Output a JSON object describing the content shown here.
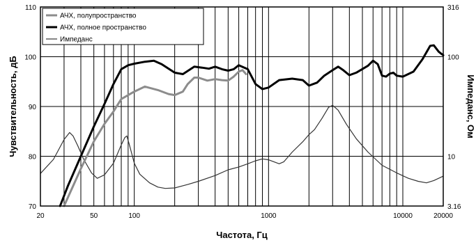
{
  "chart_data": {
    "type": "line",
    "xlabel": "Частота, Гц",
    "ylabel": "Чувствительность, дБ",
    "y2label": "Импеданс, Ом",
    "x_scale": "log",
    "xlim": [
      20,
      20000
    ],
    "ylim": [
      70,
      110
    ],
    "y2_scale": "log",
    "y2lim": [
      3.16,
      316
    ],
    "grid": true,
    "legend_position": "top-left",
    "x_ticks": [
      {
        "value": 20,
        "label": "20"
      },
      {
        "value": 50,
        "label": "50"
      },
      {
        "value": 100,
        "label": "100"
      },
      {
        "value": 1000,
        "label": "1000"
      },
      {
        "value": 10000,
        "label": "10000"
      },
      {
        "value": 20000,
        "label": "20000"
      }
    ],
    "y_ticks": [
      {
        "value": 70,
        "label": "70"
      },
      {
        "value": 80,
        "label": "80"
      },
      {
        "value": 90,
        "label": "90"
      },
      {
        "value": 100,
        "label": "100"
      },
      {
        "value": 110,
        "label": "110"
      }
    ],
    "y2_ticks": [
      {
        "value": 3.16,
        "label": "3.16"
      },
      {
        "value": 10,
        "label": "10"
      },
      {
        "value": 100,
        "label": "100"
      },
      {
        "value": 316,
        "label": "316"
      }
    ],
    "series": [
      {
        "name": "АЧХ, полупространство",
        "axis": "left",
        "color": "#8c8c8c",
        "stroke_width": 3,
        "points": [
          [
            30,
            70
          ],
          [
            35,
            74
          ],
          [
            40,
            77.5
          ],
          [
            50,
            83
          ],
          [
            60,
            86.5
          ],
          [
            70,
            89
          ],
          [
            80,
            91.5
          ],
          [
            100,
            93
          ],
          [
            120,
            94
          ],
          [
            150,
            93.3
          ],
          [
            180,
            92.5
          ],
          [
            200,
            92.3
          ],
          [
            230,
            93
          ],
          [
            250,
            94.5
          ],
          [
            280,
            95.8
          ],
          [
            300,
            95.8
          ],
          [
            350,
            95.2
          ],
          [
            400,
            95.5
          ],
          [
            450,
            95.3
          ],
          [
            500,
            95.2
          ],
          [
            550,
            96
          ],
          [
            600,
            97
          ],
          [
            640,
            97.3
          ],
          [
            680,
            96.5
          ]
        ]
      },
      {
        "name": "АЧХ, полное пространство",
        "axis": "left",
        "color": "#000000",
        "stroke_width": 3,
        "points": [
          [
            28,
            70
          ],
          [
            32,
            74
          ],
          [
            40,
            80
          ],
          [
            50,
            86
          ],
          [
            60,
            90.5
          ],
          [
            70,
            94.5
          ],
          [
            80,
            97.5
          ],
          [
            90,
            98.3
          ],
          [
            100,
            98.6
          ],
          [
            120,
            99
          ],
          [
            140,
            99.2
          ],
          [
            160,
            98.5
          ],
          [
            200,
            96.8
          ],
          [
            230,
            96.5
          ],
          [
            280,
            98
          ],
          [
            320,
            97.8
          ],
          [
            360,
            97.6
          ],
          [
            400,
            98
          ],
          [
            450,
            97.5
          ],
          [
            500,
            97.2
          ],
          [
            550,
            97.5
          ],
          [
            600,
            98.3
          ],
          [
            700,
            97.5
          ],
          [
            800,
            94.5
          ],
          [
            900,
            93.5
          ],
          [
            1000,
            93.8
          ],
          [
            1200,
            95.3
          ],
          [
            1500,
            95.6
          ],
          [
            1800,
            95.3
          ],
          [
            2000,
            94.2
          ],
          [
            2300,
            94.8
          ],
          [
            2600,
            96.2
          ],
          [
            3000,
            97.3
          ],
          [
            3300,
            98
          ],
          [
            3600,
            97.3
          ],
          [
            4000,
            96.3
          ],
          [
            4500,
            96.8
          ],
          [
            5500,
            98.2
          ],
          [
            6000,
            99.2
          ],
          [
            6500,
            98.5
          ],
          [
            7000,
            96.2
          ],
          [
            7500,
            96
          ],
          [
            8000,
            96.6
          ],
          [
            8500,
            96.8
          ],
          [
            9000,
            96.2
          ],
          [
            10000,
            96
          ],
          [
            12000,
            97
          ],
          [
            14000,
            99.5
          ],
          [
            16000,
            102.2
          ],
          [
            17000,
            102.3
          ],
          [
            18500,
            101
          ],
          [
            20000,
            100.3
          ]
        ]
      },
      {
        "name": "Импеданс",
        "axis": "right",
        "color": "#333333",
        "stroke_width": 1.2,
        "points": [
          [
            20,
            6.7
          ],
          [
            25,
            9.3
          ],
          [
            30,
            14.7
          ],
          [
            33,
            17.3
          ],
          [
            35,
            16
          ],
          [
            38,
            12.7
          ],
          [
            42,
            9.3
          ],
          [
            48,
            6.8
          ],
          [
            53,
            6
          ],
          [
            60,
            6.5
          ],
          [
            70,
            8.5
          ],
          [
            80,
            13
          ],
          [
            85,
            15.4
          ],
          [
            88,
            16
          ],
          [
            92,
            13
          ],
          [
            100,
            8.5
          ],
          [
            110,
            6.6
          ],
          [
            130,
            5.4
          ],
          [
            150,
            4.9
          ],
          [
            170,
            4.75
          ],
          [
            200,
            4.8
          ],
          [
            250,
            5.2
          ],
          [
            300,
            5.6
          ],
          [
            400,
            6.4
          ],
          [
            500,
            7.3
          ],
          [
            600,
            7.8
          ],
          [
            700,
            8.4
          ],
          [
            800,
            9
          ],
          [
            900,
            9.4
          ],
          [
            1000,
            9.2
          ],
          [
            1200,
            8.4
          ],
          [
            1300,
            8.8
          ],
          [
            1500,
            11
          ],
          [
            1800,
            14
          ],
          [
            2000,
            16.5
          ],
          [
            2200,
            18.5
          ],
          [
            2500,
            24
          ],
          [
            2800,
            31
          ],
          [
            3000,
            32.5
          ],
          [
            3300,
            29
          ],
          [
            3800,
            21
          ],
          [
            4500,
            15
          ],
          [
            5500,
            11
          ],
          [
            7000,
            8.1
          ],
          [
            9000,
            6.8
          ],
          [
            11000,
            6
          ],
          [
            13000,
            5.6
          ],
          [
            15000,
            5.4
          ],
          [
            17000,
            5.7
          ],
          [
            20000,
            6.3
          ]
        ]
      }
    ]
  }
}
